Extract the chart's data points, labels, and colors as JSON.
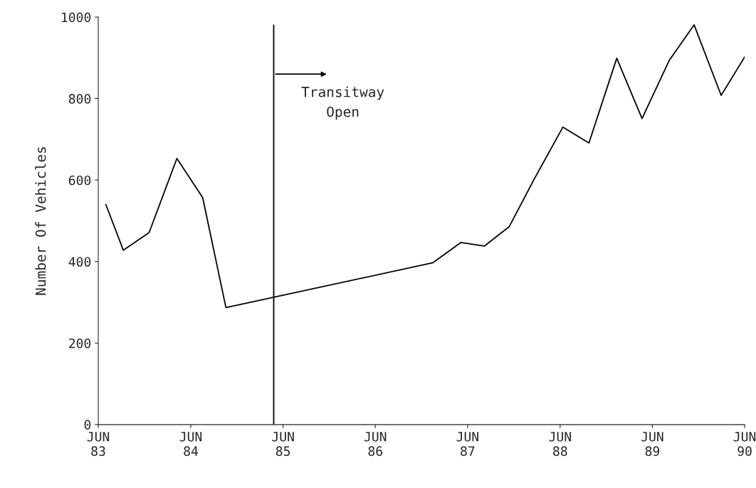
{
  "chart_data": {
    "type": "line",
    "ylabel": "Number Of Vehicles",
    "x": [
      "1983-07-01",
      "1983-09-08",
      "1983-12-19",
      "1984-04-07",
      "1984-07-18",
      "1984-10-18",
      "1987-01-14",
      "1987-05-06",
      "1987-08-06",
      "1987-11-13",
      "1988-02-20",
      "1988-06-12",
      "1988-09-23",
      "1989-01-11",
      "1989-04-21",
      "1989-08-06",
      "1989-11-13",
      "1990-02-28",
      "1990-06-01"
    ],
    "series": [
      {
        "color": "#000000",
        "values": [
          540,
          428,
          471,
          653,
          557,
          287,
          397,
          447,
          438,
          486,
          603,
          730,
          691,
          899,
          751,
          893,
          981,
          808,
          902
        ]
      }
    ],
    "xlim": [
      "1983-06-01",
      "1990-06-01"
    ],
    "xticks": [
      {
        "value": "1983-06-01",
        "label": "JUN\n83"
      },
      {
        "value": "1984-06-01",
        "label": "JUN\n84"
      },
      {
        "value": "1985-06-01",
        "label": "JUN\n85"
      },
      {
        "value": "1986-06-01",
        "label": "JUN\n86"
      },
      {
        "value": "1987-06-01",
        "label": "JUN\n87"
      },
      {
        "value": "1988-06-01",
        "label": "JUN\n88"
      },
      {
        "value": "1989-06-01",
        "label": "JUN\n89"
      },
      {
        "value": "1990-06-01",
        "label": "JUN\n90"
      }
    ],
    "ylim": [
      0,
      1000
    ],
    "yticks": [
      0,
      200,
      400,
      600,
      800,
      1000
    ],
    "ref_lines": [
      {
        "axis": "x",
        "value": "1985-04-25",
        "label": "Transitway\nOpen",
        "color": "#000000"
      }
    ],
    "grid": false,
    "legend": false,
    "marker": "none",
    "line_style": "solid"
  }
}
